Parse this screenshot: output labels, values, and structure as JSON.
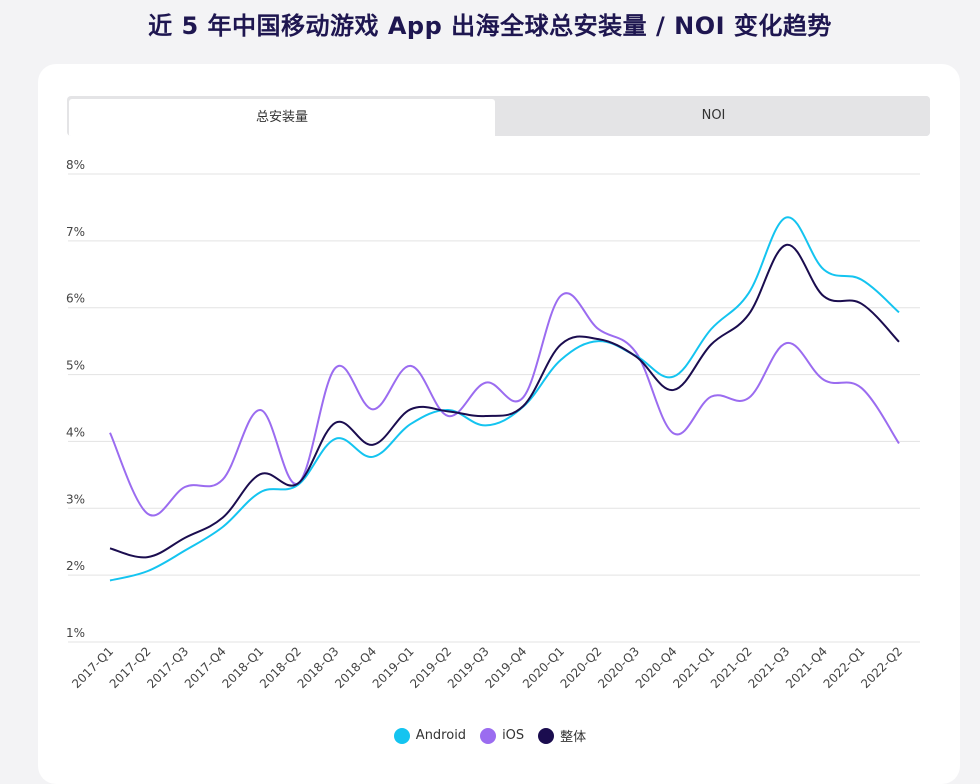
{
  "header": {
    "title": "近 5 年中国移动游戏 App 出海全球总安装量 / NOI 变化趋势"
  },
  "tabs": [
    {
      "label": "总安装量",
      "active": true
    },
    {
      "label": "NOI",
      "active": false
    }
  ],
  "chart_data": {
    "type": "line",
    "title": "近 5 年中国移动游戏 App 出海全球总安装量 / NOI 变化趋势",
    "xlabel": "",
    "ylabel": "",
    "ylim": [
      1,
      8
    ],
    "y_ticks": [
      "1%",
      "2%",
      "3%",
      "4%",
      "5%",
      "6%",
      "7%",
      "8%"
    ],
    "grid": true,
    "legend_position": "bottom-center",
    "categories": [
      "2017-Q1",
      "2017-Q2",
      "2017-Q3",
      "2017-Q4",
      "2018-Q1",
      "2018-Q2",
      "2018-Q3",
      "2018-Q4",
      "2019-Q1",
      "2019-Q2",
      "2019-Q3",
      "2019-Q4",
      "2020-Q1",
      "2020-Q2",
      "2020-Q3",
      "2020-Q4",
      "2021-Q1",
      "2021-Q2",
      "2021-Q3",
      "2021-Q4",
      "2022-Q1",
      "2022-Q2"
    ],
    "series": [
      {
        "name": "Android",
        "color": "#14c4f0",
        "values": [
          1.92,
          2.06,
          2.37,
          2.72,
          3.24,
          3.35,
          4.04,
          3.77,
          4.26,
          4.47,
          4.24,
          4.52,
          5.22,
          5.5,
          5.28,
          4.97,
          5.68,
          6.22,
          7.35,
          6.57,
          6.42,
          5.93
        ]
      },
      {
        "name": "iOS",
        "color": "#9b6cf0",
        "values": [
          4.13,
          2.92,
          3.32,
          3.43,
          4.47,
          3.37,
          5.1,
          4.48,
          5.13,
          4.38,
          4.88,
          4.66,
          6.18,
          5.68,
          5.33,
          4.12,
          4.67,
          4.65,
          5.47,
          4.92,
          4.8,
          3.97
        ]
      },
      {
        "name": "整体",
        "color": "#1b0d4f",
        "values": [
          2.4,
          2.27,
          2.56,
          2.86,
          3.51,
          3.37,
          4.28,
          3.95,
          4.48,
          4.45,
          4.38,
          4.53,
          5.45,
          5.53,
          5.27,
          4.77,
          5.45,
          5.9,
          6.94,
          6.17,
          6.06,
          5.49
        ]
      }
    ]
  }
}
